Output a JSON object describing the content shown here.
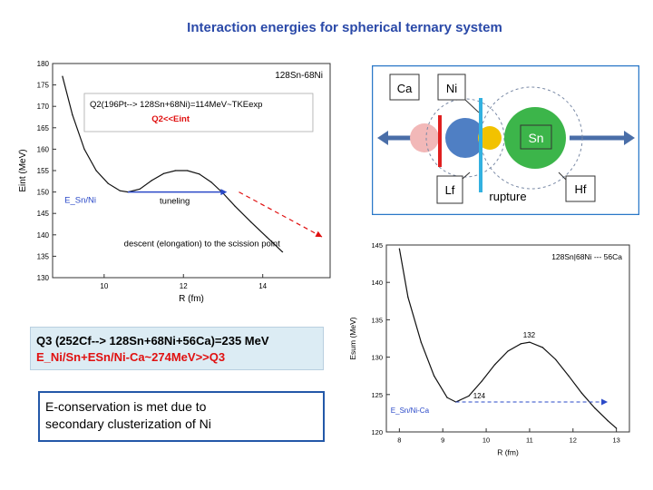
{
  "title": "Interaction energies for spherical ternary system",
  "q3_box": {
    "line1": "Q3 (252Cf--> 128Sn+68Ni+56Ca)=235 MeV",
    "line2": "E_Ni/Sn+ESn/Ni-Ca~274MeV>>Q3"
  },
  "econs_box": {
    "line1": "E-conservation is met due to",
    "line2": "secondary clusterization of  Ni"
  },
  "diagram": {
    "labels": {
      "ca": "Ca",
      "ni": "Ni",
      "sn": "Sn",
      "lf": "Lf",
      "hf": "Hf",
      "rupture": "rupture"
    },
    "colors": {
      "ca": "#f2b8b8",
      "ni": "#4f7fc4",
      "neck": "#f2c200",
      "sn": "#3cb54a",
      "red_bar": "#e02020",
      "blue_bar": "#33b1e0",
      "arrow": "#4a6ea8"
    }
  },
  "chart_data": [
    {
      "type": "line",
      "title": "128Sn-68Ni",
      "xlabel": "R (fm)",
      "ylabel": "Eint (MeV)",
      "xlim": [
        8.7,
        15.7
      ],
      "ylim": [
        130,
        180
      ],
      "xticks": [
        10,
        12,
        14
      ],
      "yticks": [
        130,
        135,
        140,
        145,
        150,
        155,
        160,
        165,
        170,
        175,
        180
      ],
      "series": [
        {
          "x": [
            8.95,
            9.2,
            9.5,
            9.8,
            10.1,
            10.4,
            10.6,
            10.9,
            11.2,
            11.5,
            11.8,
            12.1,
            12.4,
            12.7,
            13.0,
            13.3,
            13.7,
            14.1,
            14.5
          ],
          "y": [
            177,
            168,
            160,
            155,
            152,
            150.3,
            150,
            150.7,
            152.7,
            154.3,
            155,
            155,
            154.2,
            152.3,
            149.7,
            146.7,
            143,
            139.5,
            136
          ]
        }
      ],
      "annotations": {
        "q2_text": "Q2(196Pt--> 128Sn+68Ni)=114MeV~TKEexp",
        "q2_red": "Q2<<Eint",
        "level_label": "E_Sn/Ni",
        "tunnel_label": "tuneling",
        "descent_label": "descent (elongation) to the scission point",
        "level_y": 150,
        "tunnel_x": [
          10.6,
          13.1
        ],
        "descent_x": [
          13.4,
          15.5
        ],
        "descent_y": [
          150,
          139.5
        ]
      }
    },
    {
      "type": "line",
      "title": "128Sn|68Ni --- 56Ca",
      "xlabel": "R (fm)",
      "ylabel": "Esum (MeV)",
      "xlim": [
        7.7,
        13.3
      ],
      "ylim": [
        120,
        145
      ],
      "xticks": [
        8,
        9,
        10,
        11,
        12,
        13
      ],
      "yticks": [
        120,
        125,
        130,
        135,
        140,
        145
      ],
      "series": [
        {
          "x": [
            8.0,
            8.2,
            8.5,
            8.8,
            9.1,
            9.3,
            9.6,
            9.9,
            10.2,
            10.5,
            10.8,
            11.0,
            11.3,
            11.6,
            11.9,
            12.2,
            12.5,
            12.8,
            13.0
          ],
          "y": [
            144.5,
            138,
            132,
            127.5,
            124.6,
            124,
            124.8,
            126.8,
            129,
            130.8,
            131.8,
            132,
            131.3,
            129.7,
            127.5,
            125.2,
            123.2,
            121.5,
            120.5
          ]
        }
      ],
      "annotations": {
        "level_label": "E_Sn/Ni-Ca",
        "min_label": "124",
        "max_label": "132",
        "level_y": 124,
        "level_x": [
          9.3,
          12.8
        ]
      }
    }
  ]
}
